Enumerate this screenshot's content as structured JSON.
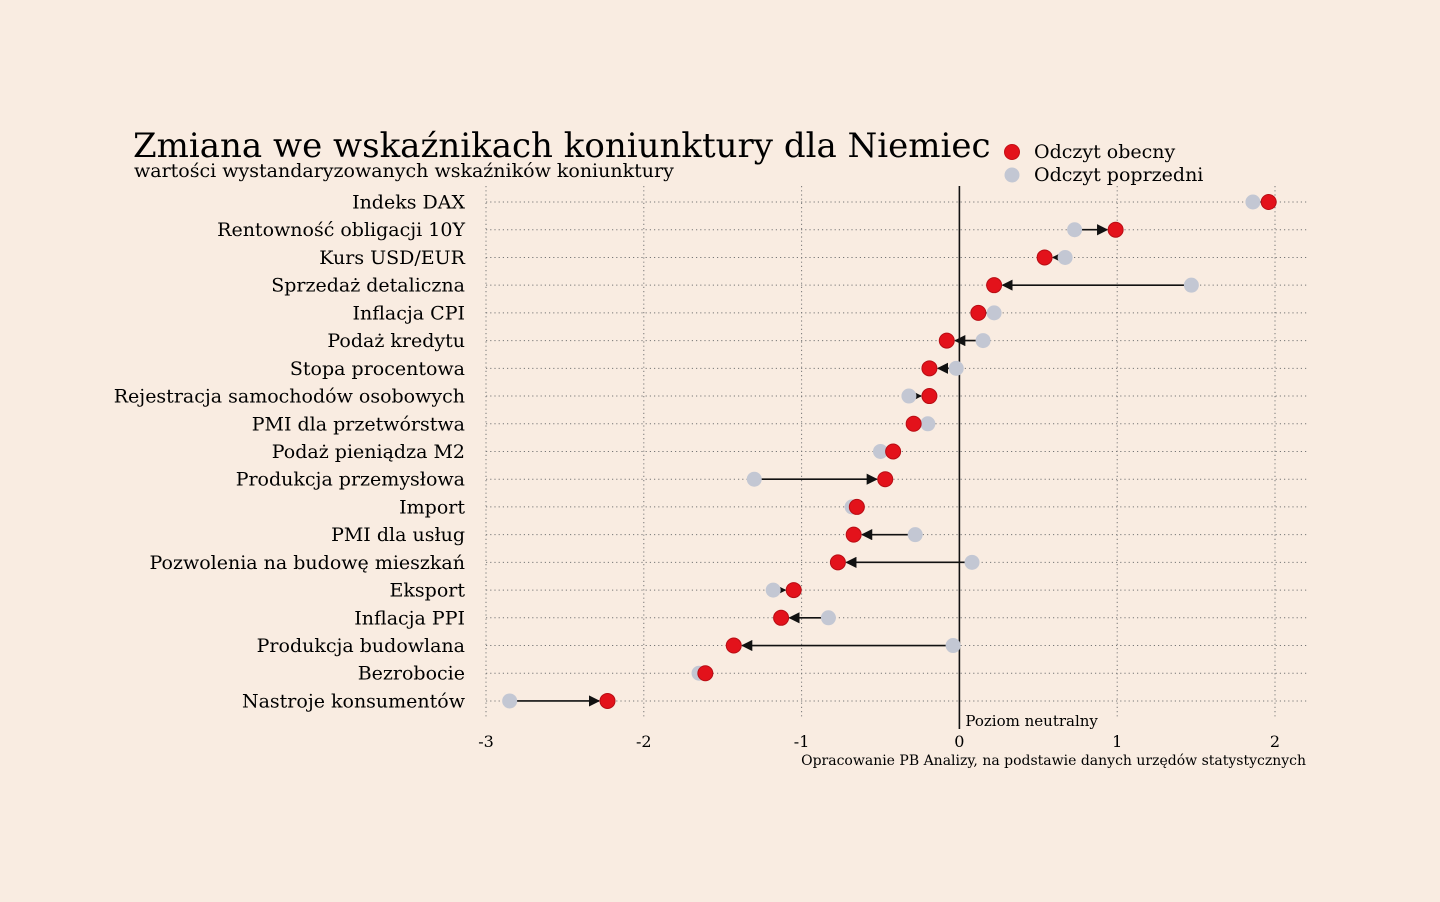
{
  "colors": {
    "background": "#f9ece1",
    "current": "#e3121b",
    "previous": "#c3c7d3",
    "axis": "#111111",
    "grid": "#777777"
  },
  "chart_data": {
    "type": "dot-arrow",
    "title": "Zmiana we wskaźnikach koniunktury dla Niemiec",
    "subtitle": "wartości wystandaryzowanych wskaźników koniunktury",
    "legend": {
      "current": "Odczyt obecny",
      "previous": "Odczyt poprzedni",
      "placement": "top-right"
    },
    "neutral_label": "Poziom neutralny",
    "source": "Opracowanie PB Analizy, na podstawie danych urzędów statystycznych",
    "xlim": [
      -3,
      2.2
    ],
    "xticks": [
      -3,
      -2,
      -1,
      0,
      1,
      2
    ],
    "xtick_labels": [
      "-3",
      "-2",
      "-1",
      "0",
      "1",
      "2"
    ],
    "grid": true,
    "categories": [
      "Indeks DAX",
      "Rentowność obligacji 10Y",
      "Kurs USD/EUR",
      "Sprzedaż detaliczna",
      "Inflacja CPI",
      "Podaż kredytu",
      "Stopa procentowa",
      "Rejestracja samochodów osobowych",
      "PMI dla przetwórstwa",
      "Podaż pieniądza M2",
      "Produkcja przemysłowa",
      "Import",
      "PMI dla usług",
      "Pozwolenia na budowę mieszkań",
      "Eksport",
      "Inflacja PPI",
      "Produkcja budowlana",
      "Bezrobocie",
      "Nastroje konsumentów"
    ],
    "series": [
      {
        "name": "Odczyt obecny",
        "values": [
          1.96,
          0.99,
          0.54,
          0.22,
          0.12,
          -0.08,
          -0.19,
          -0.19,
          -0.29,
          -0.42,
          -0.47,
          -0.65,
          -0.67,
          -0.77,
          -1.05,
          -1.13,
          -1.43,
          -1.61,
          -2.23
        ]
      },
      {
        "name": "Odczyt poprzedni",
        "values": [
          1.86,
          0.73,
          0.67,
          1.47,
          0.22,
          0.15,
          -0.02,
          -0.32,
          -0.2,
          -0.5,
          -1.3,
          -0.68,
          -0.28,
          0.08,
          -1.18,
          -0.83,
          -0.04,
          -1.65,
          -2.85
        ]
      }
    ]
  }
}
